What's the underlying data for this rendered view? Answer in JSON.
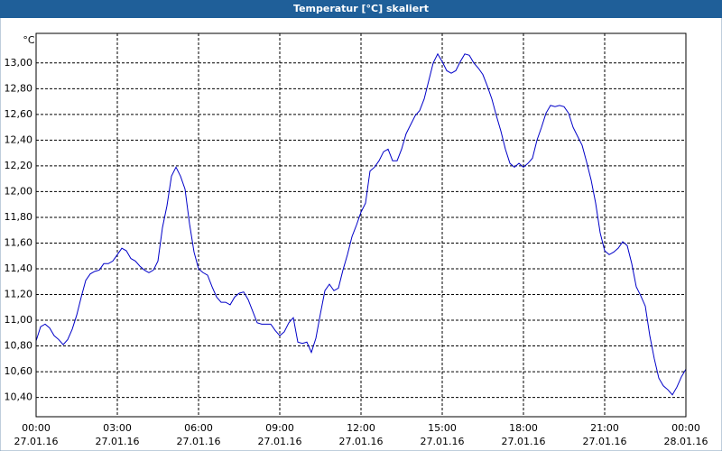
{
  "chart_data": {
    "type": "line",
    "title": "Temperatur [°C] skaliert",
    "y_label": "°C",
    "color": "#0000c8",
    "grid": true,
    "xlim": [
      0,
      1440
    ],
    "ylim": [
      10.25,
      13.23
    ],
    "xticks": [
      {
        "value": 0,
        "label": "00:00"
      },
      {
        "value": 180,
        "label": "03:00"
      },
      {
        "value": 360,
        "label": "06:00"
      },
      {
        "value": 540,
        "label": "09:00"
      },
      {
        "value": 720,
        "label": "12:00"
      },
      {
        "value": 900,
        "label": "15:00"
      },
      {
        "value": 1080,
        "label": "18:00"
      },
      {
        "value": 1260,
        "label": "21:00"
      },
      {
        "value": 1440,
        "label": "00:00"
      }
    ],
    "xtick_dates": [
      "27.01.16",
      "27.01.16",
      "27.01.16",
      "27.01.16",
      "27.01.16",
      "27.01.16",
      "27.01.16",
      "27.01.16",
      "28.01.16"
    ],
    "yticks": [
      {
        "value": 10.4,
        "label": "10,40"
      },
      {
        "value": 10.6,
        "label": "10,60"
      },
      {
        "value": 10.8,
        "label": "10,80"
      },
      {
        "value": 11,
        "label": "11,00"
      },
      {
        "value": 11.2,
        "label": "11,20"
      },
      {
        "value": 11.4,
        "label": "11,40"
      },
      {
        "value": 11.6,
        "label": "11,60"
      },
      {
        "value": 11.8,
        "label": "11,80"
      },
      {
        "value": 12,
        "label": "12,00"
      },
      {
        "value": 12.2,
        "label": "12,20"
      },
      {
        "value": 12.4,
        "label": "12,40"
      },
      {
        "value": 12.6,
        "label": "12,60"
      },
      {
        "value": 12.8,
        "label": "12,80"
      },
      {
        "value": 13,
        "label": "13,00"
      }
    ],
    "x": [
      0,
      10,
      20,
      30,
      40,
      50,
      60,
      70,
      80,
      90,
      100,
      110,
      120,
      130,
      140,
      150,
      160,
      170,
      180,
      190,
      200,
      210,
      220,
      230,
      240,
      250,
      260,
      270,
      280,
      290,
      300,
      310,
      320,
      330,
      340,
      350,
      360,
      370,
      380,
      390,
      400,
      410,
      420,
      430,
      440,
      450,
      460,
      470,
      480,
      490,
      500,
      510,
      520,
      530,
      540,
      550,
      560,
      570,
      580,
      590,
      600,
      610,
      620,
      630,
      640,
      650,
      660,
      670,
      680,
      690,
      700,
      710,
      720,
      730,
      740,
      750,
      760,
      770,
      780,
      790,
      800,
      810,
      820,
      830,
      840,
      850,
      860,
      870,
      880,
      890,
      900,
      910,
      920,
      930,
      940,
      950,
      960,
      970,
      980,
      990,
      1000,
      1010,
      1020,
      1030,
      1040,
      1050,
      1060,
      1070,
      1080,
      1090,
      1100,
      1110,
      1120,
      1130,
      1140,
      1150,
      1160,
      1170,
      1180,
      1190,
      1200,
      1210,
      1220,
      1230,
      1240,
      1250,
      1260,
      1270,
      1280,
      1290,
      1300,
      1310,
      1320,
      1330,
      1340,
      1350,
      1360,
      1370,
      1380,
      1390,
      1400,
      1410,
      1420,
      1430,
      1440
    ],
    "values": [
      10.84,
      10.95,
      10.97,
      10.94,
      10.88,
      10.85,
      10.81,
      10.85,
      10.93,
      11.04,
      11.18,
      11.31,
      11.36,
      11.38,
      11.39,
      11.44,
      11.44,
      11.46,
      11.51,
      11.56,
      11.54,
      11.48,
      11.46,
      11.42,
      11.39,
      11.37,
      11.39,
      11.46,
      11.72,
      11.89,
      12.12,
      12.19,
      12.12,
      12.02,
      11.75,
      11.53,
      11.4,
      11.37,
      11.35,
      11.26,
      11.18,
      11.14,
      11.14,
      11.12,
      11.18,
      11.21,
      11.22,
      11.16,
      11.07,
      10.98,
      10.97,
      10.97,
      10.97,
      10.92,
      10.88,
      10.91,
      10.98,
      11.02,
      10.83,
      10.82,
      10.83,
      10.75,
      10.86,
      11.05,
      11.23,
      11.28,
      11.23,
      11.25,
      11.39,
      11.51,
      11.65,
      11.74,
      11.84,
      11.91,
      12.16,
      12.19,
      12.24,
      12.31,
      12.33,
      12.24,
      12.24,
      12.33,
      12.45,
      12.52,
      12.59,
      12.63,
      12.72,
      12.86,
      13.0,
      13.07,
      13.01,
      12.94,
      12.92,
      12.94,
      13.01,
      13.07,
      13.06,
      13.0,
      12.96,
      12.91,
      12.82,
      12.72,
      12.59,
      12.47,
      12.33,
      12.22,
      12.19,
      12.22,
      12.19,
      12.22,
      12.26,
      12.4,
      12.5,
      12.61,
      12.67,
      12.66,
      12.67,
      12.66,
      12.61,
      12.5,
      12.43,
      12.36,
      12.23,
      12.09,
      11.91,
      11.68,
      11.54,
      11.51,
      11.53,
      11.56,
      11.61,
      11.58,
      11.44,
      11.26,
      11.19,
      11.11,
      10.88,
      10.7,
      10.55,
      10.49,
      10.46,
      10.42,
      10.48,
      10.56,
      10.62
    ]
  }
}
